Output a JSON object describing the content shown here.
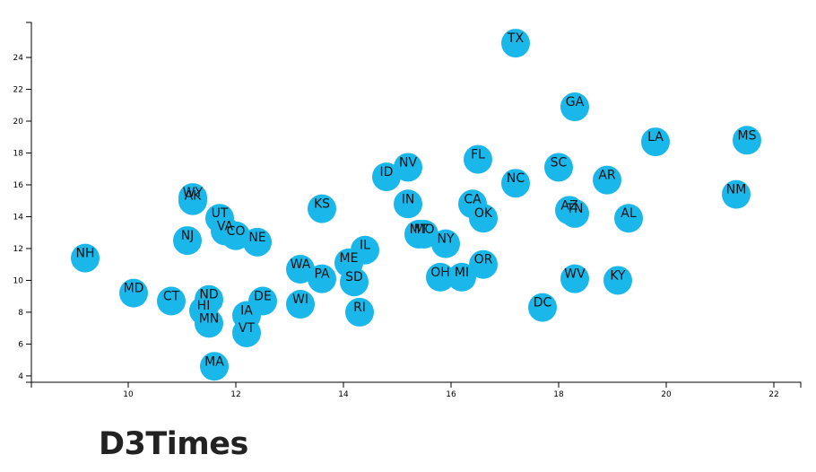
{
  "page": {
    "title": "D3Times"
  },
  "colors": {
    "marker": "#1ab7ea",
    "axis": "#000000",
    "label": "#111111"
  },
  "chart_data": {
    "type": "scatter",
    "title": "",
    "xlabel": "",
    "ylabel": "",
    "xlim": [
      8.2,
      22.5
    ],
    "ylim": [
      3.6,
      26.2
    ],
    "grid": false,
    "x_ticks": [
      10,
      12,
      14,
      16,
      18,
      20,
      22
    ],
    "y_ticks": [
      4,
      6,
      8,
      10,
      12,
      14,
      16,
      18,
      20,
      22,
      24
    ],
    "points": [
      {
        "label": "TX",
        "x": 17.2,
        "y": 24.9
      },
      {
        "label": "GA",
        "x": 18.3,
        "y": 20.9
      },
      {
        "label": "LA",
        "x": 19.8,
        "y": 18.7
      },
      {
        "label": "MS",
        "x": 21.5,
        "y": 18.8
      },
      {
        "label": "FL",
        "x": 16.5,
        "y": 17.6
      },
      {
        "label": "SC",
        "x": 18.0,
        "y": 17.1
      },
      {
        "label": "NV",
        "x": 15.2,
        "y": 17.1
      },
      {
        "label": "ID",
        "x": 14.8,
        "y": 16.5
      },
      {
        "label": "AR",
        "x": 18.9,
        "y": 16.3
      },
      {
        "label": "NC",
        "x": 17.2,
        "y": 16.1
      },
      {
        "label": "NM",
        "x": 21.3,
        "y": 15.4
      },
      {
        "label": "WY",
        "x": 11.2,
        "y": 15.2
      },
      {
        "label": "AK",
        "x": 11.2,
        "y": 15.0
      },
      {
        "label": "IN",
        "x": 15.2,
        "y": 14.8
      },
      {
        "label": "CA",
        "x": 16.4,
        "y": 14.8
      },
      {
        "label": "KS",
        "x": 13.6,
        "y": 14.5
      },
      {
        "label": "AZ",
        "x": 18.2,
        "y": 14.4
      },
      {
        "label": "TN",
        "x": 18.3,
        "y": 14.2
      },
      {
        "label": "UT",
        "x": 11.7,
        "y": 13.9
      },
      {
        "label": "OK",
        "x": 16.6,
        "y": 13.9
      },
      {
        "label": "AL",
        "x": 19.3,
        "y": 13.9
      },
      {
        "label": "VA",
        "x": 11.8,
        "y": 13.1
      },
      {
        "label": "MT",
        "x": 15.4,
        "y": 12.9
      },
      {
        "label": "MO",
        "x": 15.5,
        "y": 12.9
      },
      {
        "label": "CO",
        "x": 12.0,
        "y": 12.8
      },
      {
        "label": "NJ",
        "x": 11.1,
        "y": 12.5
      },
      {
        "label": "NE",
        "x": 12.4,
        "y": 12.4
      },
      {
        "label": "NY",
        "x": 15.9,
        "y": 12.3
      },
      {
        "label": "IL",
        "x": 14.4,
        "y": 11.9
      },
      {
        "label": "NH",
        "x": 9.2,
        "y": 11.4
      },
      {
        "label": "ME",
        "x": 14.1,
        "y": 11.1
      },
      {
        "label": "OR",
        "x": 16.6,
        "y": 11.0
      },
      {
        "label": "WA",
        "x": 13.2,
        "y": 10.7
      },
      {
        "label": "OH",
        "x": 15.8,
        "y": 10.2
      },
      {
        "label": "MI",
        "x": 16.2,
        "y": 10.2
      },
      {
        "label": "PA",
        "x": 13.6,
        "y": 10.1
      },
      {
        "label": "WV",
        "x": 18.3,
        "y": 10.1
      },
      {
        "label": "KY",
        "x": 19.1,
        "y": 10.0
      },
      {
        "label": "SD",
        "x": 14.2,
        "y": 9.9
      },
      {
        "label": "MD",
        "x": 10.1,
        "y": 9.2
      },
      {
        "label": "CT",
        "x": 10.8,
        "y": 8.7
      },
      {
        "label": "ND",
        "x": 11.5,
        "y": 8.8
      },
      {
        "label": "DE",
        "x": 12.5,
        "y": 8.7
      },
      {
        "label": "WI",
        "x": 13.2,
        "y": 8.5
      },
      {
        "label": "DC",
        "x": 17.7,
        "y": 8.3
      },
      {
        "label": "HI",
        "x": 11.4,
        "y": 8.1
      },
      {
        "label": "RI",
        "x": 14.3,
        "y": 8.0
      },
      {
        "label": "IA",
        "x": 12.2,
        "y": 7.8
      },
      {
        "label": "MN",
        "x": 11.5,
        "y": 7.3
      },
      {
        "label": "VT",
        "x": 12.2,
        "y": 6.7
      },
      {
        "label": "MA",
        "x": 11.6,
        "y": 4.6
      }
    ]
  }
}
